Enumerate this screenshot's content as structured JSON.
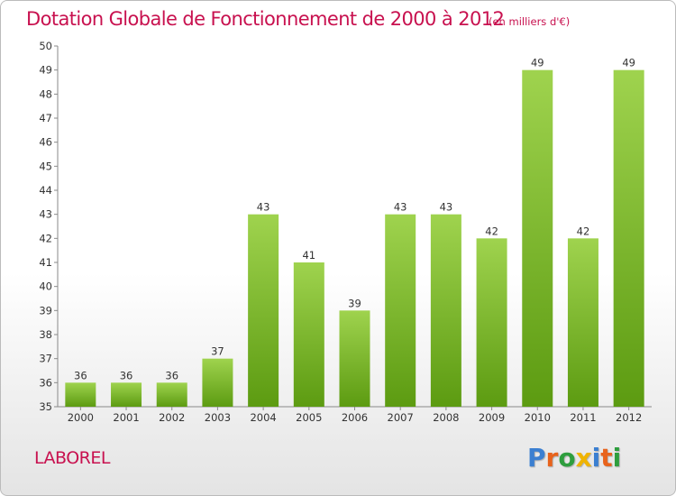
{
  "header": {
    "title": "Dotation Globale de Fonctionnement de 2000 à 2012",
    "subtitle": "(en milliers d'€)"
  },
  "footer": {
    "commune": "LABOREL",
    "brand": "Proxiti"
  },
  "colors": {
    "title": "#c8114f",
    "bar_top": "#9fd34e",
    "bar_bottom": "#5c9b11",
    "axis": "#8a8a8a",
    "brand_letters": [
      "#3b7fd1",
      "#e8631c",
      "#2e9e3e",
      "#f0b400",
      "#3b7fd1",
      "#e8631c",
      "#2e9e3e"
    ]
  },
  "chart_data": {
    "type": "bar",
    "title": "Dotation Globale de Fonctionnement de 2000 à 2012",
    "subtitle": "(en milliers d'€)",
    "categories": [
      "2000",
      "2001",
      "2002",
      "2003",
      "2004",
      "2005",
      "2006",
      "2007",
      "2008",
      "2009",
      "2010",
      "2011",
      "2012"
    ],
    "values": [
      36,
      36,
      36,
      37,
      43,
      41,
      39,
      43,
      43,
      42,
      49,
      42,
      49
    ],
    "data_labels": [
      "36",
      "36",
      "36",
      "37",
      "43",
      "41",
      "39",
      "43",
      "43",
      "42",
      "49",
      "42",
      "49"
    ],
    "ylim": [
      35,
      50
    ],
    "yticks": [
      35,
      36,
      37,
      38,
      39,
      40,
      41,
      42,
      43,
      44,
      45,
      46,
      47,
      48,
      49,
      50
    ],
    "xlabel": "",
    "ylabel": "",
    "grid": false,
    "legend": "none"
  }
}
